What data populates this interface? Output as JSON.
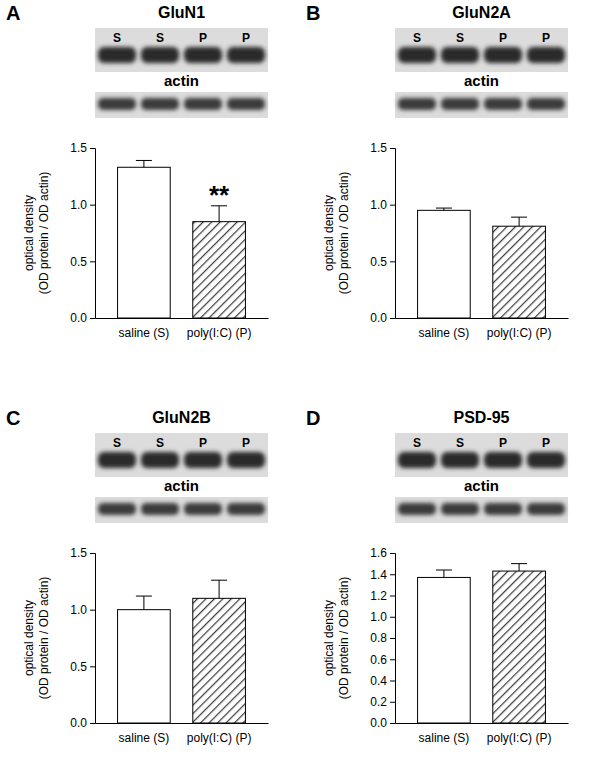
{
  "chart_data": [
    {
      "type": "bar",
      "panel": "A",
      "title": "GluN1",
      "lanes": [
        "S",
        "S",
        "P",
        "P"
      ],
      "loading_control": "actin",
      "categories": [
        "saline (S)",
        "poly(I:C) (P)"
      ],
      "values": [
        1.33,
        0.85
      ],
      "errors": [
        0.06,
        0.14
      ],
      "colors": [
        "#ffffff",
        "#404040"
      ],
      "y_label": [
        "optical density",
        "(OD protein / OD actin)"
      ],
      "ylim": [
        0,
        1.5
      ],
      "yticks": [
        {
          "value": 0,
          "label": "0.0"
        },
        0.5,
        {
          "value": 1,
          "label": "1.0"
        },
        1.5
      ],
      "annotations": [
        {
          "text": "**",
          "x": "poly(I:C) (P)"
        }
      ]
    },
    {
      "type": "bar",
      "panel": "B",
      "title": "GluN2A",
      "lanes": [
        "S",
        "S",
        "P",
        "P"
      ],
      "loading_control": "actin",
      "categories": [
        "saline (S)",
        "poly(I:C) (P)"
      ],
      "values": [
        0.95,
        0.81
      ],
      "errors": [
        0.02,
        0.08
      ],
      "colors": [
        "#ffffff",
        "#404040"
      ],
      "y_label": [
        "optical density",
        "(OD protein / OD actin)"
      ],
      "ylim": [
        0,
        1.5
      ],
      "yticks": [
        {
          "value": 0,
          "label": "0.0"
        },
        0.5,
        {
          "value": 1,
          "label": "1.0"
        },
        1.5
      ]
    },
    {
      "type": "bar",
      "panel": "C",
      "title": "GluN2B",
      "lanes": [
        "S",
        "S",
        "P",
        "P"
      ],
      "loading_control": "actin",
      "categories": [
        "saline (S)",
        "poly(I:C) (P)"
      ],
      "values": [
        1.0,
        1.1
      ],
      "errors": [
        0.12,
        0.16
      ],
      "colors": [
        "#ffffff",
        "#404040"
      ],
      "y_label": [
        "optical density",
        "(OD protein / OD actin)"
      ],
      "ylim": [
        0,
        1.5
      ],
      "yticks": [
        {
          "value": 0,
          "label": "0.0"
        },
        0.5,
        {
          "value": 1,
          "label": "1.0"
        },
        1.5
      ]
    },
    {
      "type": "bar",
      "panel": "D",
      "title": "PSD-95",
      "lanes": [
        "S",
        "S",
        "P",
        "P"
      ],
      "loading_control": "actin",
      "categories": [
        "saline (S)",
        "poly(I:C) (P)"
      ],
      "values": [
        1.37,
        1.43
      ],
      "errors": [
        0.07,
        0.07
      ],
      "colors": [
        "#ffffff",
        "#404040"
      ],
      "y_label": [
        "optical density",
        "(OD protein / OD actin)"
      ],
      "ylim": [
        0,
        1.6
      ],
      "yticks": [
        {
          "value": 0,
          "label": "0.0"
        },
        0.2,
        0.4,
        0.6,
        0.8,
        {
          "value": 1,
          "label": "1.0"
        },
        1.2,
        1.4,
        1.6
      ]
    }
  ]
}
